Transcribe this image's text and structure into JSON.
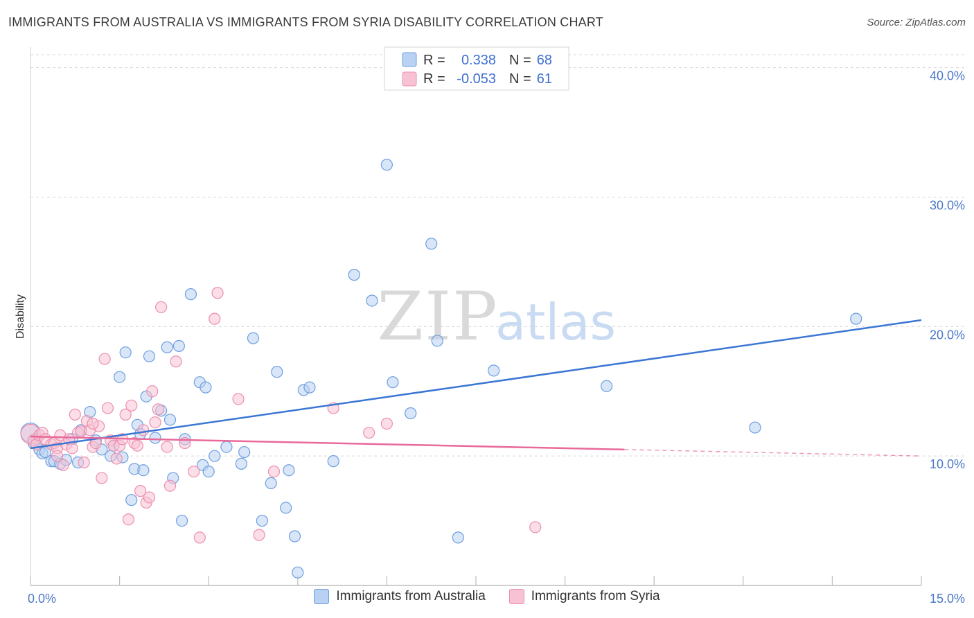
{
  "title": "IMMIGRANTS FROM AUSTRALIA VS IMMIGRANTS FROM SYRIA DISABILITY CORRELATION CHART",
  "source": "Source: ZipAtlas.com",
  "watermark": {
    "zip": "ZIP",
    "atlas": "atlas"
  },
  "colors": {
    "blue_fill": "#b9d1f3",
    "blue_stroke": "#6d9ee0",
    "blue_line": "#3a76d4",
    "pink_fill": "#f7c3d4",
    "pink_stroke": "#ec8fae",
    "pink_line": "#e8699a",
    "grid": "#d8d8d8",
    "axis_text": "#4a78c8"
  },
  "legend": {
    "rows": [
      {
        "r_label": "R =",
        "r_value": "0.338",
        "n_label": "N =",
        "n_value": "68",
        "series": "australia"
      },
      {
        "r_label": "R =",
        "r_value": "-0.053",
        "n_label": "N =",
        "n_value": "61",
        "series": "syria"
      }
    ]
  },
  "chart_data": {
    "type": "scatter",
    "title": "IMMIGRANTS FROM AUSTRALIA VS IMMIGRANTS FROM SYRIA DISABILITY CORRELATION CHART",
    "xlabel": "",
    "ylabel": "Disability",
    "xlim": [
      0,
      15
    ],
    "ylim": [
      0,
      41
    ],
    "x_tick_labels": [
      {
        "value": 0,
        "label": "0.0%"
      },
      {
        "value": 15,
        "label": "15.0%"
      }
    ],
    "y_tick_labels": [
      {
        "value": 10,
        "label": "10.0%"
      },
      {
        "value": 20,
        "label": "20.0%"
      },
      {
        "value": 30,
        "label": "30.0%"
      },
      {
        "value": 40,
        "label": "40.0%"
      }
    ],
    "series": [
      {
        "name": "Immigrants from Australia",
        "color": "blue",
        "trend": {
          "x0": 0,
          "y0": 10.6,
          "x1": 15,
          "y1": 20.5
        },
        "points": [
          [
            0.0,
            11.8
          ],
          [
            0.05,
            11.0
          ],
          [
            0.1,
            11.3
          ],
          [
            0.15,
            10.5
          ],
          [
            0.2,
            10.2
          ],
          [
            0.25,
            10.3
          ],
          [
            0.35,
            9.6
          ],
          [
            0.4,
            9.6
          ],
          [
            0.5,
            9.4
          ],
          [
            0.6,
            9.7
          ],
          [
            0.8,
            9.5
          ],
          [
            0.7,
            11.3
          ],
          [
            0.85,
            12.0
          ],
          [
            1.0,
            13.4
          ],
          [
            1.1,
            11.2
          ],
          [
            1.2,
            10.5
          ],
          [
            1.35,
            10.0
          ],
          [
            1.4,
            10.8
          ],
          [
            1.5,
            16.1
          ],
          [
            1.55,
            9.9
          ],
          [
            1.6,
            18.0
          ],
          [
            1.7,
            6.6
          ],
          [
            1.75,
            9.0
          ],
          [
            1.8,
            12.4
          ],
          [
            1.85,
            11.7
          ],
          [
            1.9,
            8.9
          ],
          [
            1.95,
            14.6
          ],
          [
            2.0,
            17.7
          ],
          [
            2.1,
            11.4
          ],
          [
            2.2,
            13.5
          ],
          [
            2.3,
            18.4
          ],
          [
            2.35,
            12.8
          ],
          [
            2.4,
            8.3
          ],
          [
            2.5,
            18.5
          ],
          [
            2.55,
            5.0
          ],
          [
            2.6,
            11.3
          ],
          [
            2.7,
            22.5
          ],
          [
            2.85,
            15.7
          ],
          [
            2.9,
            9.3
          ],
          [
            2.95,
            15.3
          ],
          [
            3.0,
            8.8
          ],
          [
            3.1,
            10.0
          ],
          [
            3.3,
            10.7
          ],
          [
            3.55,
            9.4
          ],
          [
            3.6,
            10.3
          ],
          [
            3.75,
            19.1
          ],
          [
            3.9,
            5.0
          ],
          [
            4.15,
            16.5
          ],
          [
            4.3,
            6.0
          ],
          [
            4.35,
            8.9
          ],
          [
            4.45,
            3.8
          ],
          [
            4.5,
            1.0
          ],
          [
            4.6,
            15.1
          ],
          [
            4.7,
            15.3
          ],
          [
            5.1,
            9.6
          ],
          [
            5.45,
            24.0
          ],
          [
            5.75,
            22.0
          ],
          [
            6.0,
            32.5
          ],
          [
            6.1,
            15.7
          ],
          [
            6.4,
            13.3
          ],
          [
            6.75,
            26.4
          ],
          [
            6.85,
            18.9
          ],
          [
            7.2,
            3.7
          ],
          [
            7.8,
            16.6
          ],
          [
            9.7,
            15.4
          ],
          [
            12.2,
            12.2
          ],
          [
            13.9,
            20.6
          ],
          [
            4.05,
            7.9
          ]
        ]
      },
      {
        "name": "Immigrants from Syria",
        "color": "pink",
        "trend": {
          "x0": 0,
          "y0": 11.5,
          "x1": 10.0,
          "y1": 10.5,
          "dash_to": {
            "x": 15,
            "y": 10.0
          }
        },
        "points": [
          [
            0.0,
            11.7
          ],
          [
            0.05,
            11.2
          ],
          [
            0.1,
            10.9
          ],
          [
            0.15,
            11.6
          ],
          [
            0.2,
            11.8
          ],
          [
            0.25,
            11.3
          ],
          [
            0.35,
            10.9
          ],
          [
            0.4,
            11.0
          ],
          [
            0.45,
            10.6
          ],
          [
            0.5,
            11.6
          ],
          [
            0.55,
            9.3
          ],
          [
            0.6,
            10.9
          ],
          [
            0.65,
            11.3
          ],
          [
            0.7,
            10.6
          ],
          [
            0.75,
            13.2
          ],
          [
            0.8,
            11.8
          ],
          [
            0.85,
            11.9
          ],
          [
            0.9,
            9.5
          ],
          [
            0.95,
            12.7
          ],
          [
            1.0,
            12.0
          ],
          [
            1.05,
            10.7
          ],
          [
            1.1,
            11.0
          ],
          [
            1.15,
            12.3
          ],
          [
            1.2,
            8.3
          ],
          [
            1.25,
            17.5
          ],
          [
            1.3,
            13.7
          ],
          [
            1.35,
            11.2
          ],
          [
            1.4,
            10.8
          ],
          [
            1.45,
            9.8
          ],
          [
            1.5,
            10.8
          ],
          [
            1.55,
            11.3
          ],
          [
            1.6,
            13.2
          ],
          [
            1.65,
            5.1
          ],
          [
            1.7,
            13.9
          ],
          [
            1.75,
            11.0
          ],
          [
            1.8,
            10.8
          ],
          [
            1.85,
            7.3
          ],
          [
            1.9,
            12.0
          ],
          [
            1.95,
            6.4
          ],
          [
            2.0,
            6.8
          ],
          [
            2.05,
            15.0
          ],
          [
            2.1,
            12.6
          ],
          [
            2.15,
            13.6
          ],
          [
            2.2,
            21.5
          ],
          [
            2.3,
            10.7
          ],
          [
            2.35,
            7.7
          ],
          [
            2.45,
            17.3
          ],
          [
            2.6,
            11.0
          ],
          [
            2.75,
            8.8
          ],
          [
            2.85,
            3.7
          ],
          [
            3.1,
            20.6
          ],
          [
            3.15,
            22.6
          ],
          [
            3.5,
            14.4
          ],
          [
            3.85,
            3.9
          ],
          [
            4.1,
            8.8
          ],
          [
            5.1,
            13.7
          ],
          [
            5.7,
            11.8
          ],
          [
            6.0,
            12.5
          ],
          [
            8.5,
            4.5
          ],
          [
            0.45,
            10.0
          ],
          [
            1.05,
            12.5
          ]
        ]
      }
    ]
  }
}
